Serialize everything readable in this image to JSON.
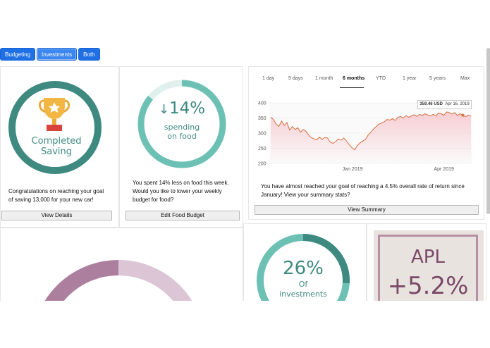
{
  "tabs": [
    "Budgeting",
    "Investments",
    "Both"
  ],
  "savings_card": {
    "line1": "Completed",
    "line2": "Saving",
    "message": [
      "Congratulations on reaching your goal",
      "of saving 13,000 for your new car!"
    ],
    "button": "View Details",
    "ring_color": "#3e8a80",
    "icon": "trophy-icon"
  },
  "food_card": {
    "arrow": "↓",
    "percent": "14%",
    "label1": "spending",
    "label2": "on food",
    "message": [
      "You spent 14% less on food this week.",
      "Would you like to lower your weekly",
      "budget for food?"
    ],
    "button": "Edit Food Budget",
    "progress_fraction": 0.86,
    "ring_color": "#6cc0b4"
  },
  "stock_card": {
    "ranges": [
      "1 day",
      "5 days",
      "1 month",
      "6 months",
      "YTD",
      "1 year",
      "5 years",
      "Max"
    ],
    "active_range": "6 months",
    "tooltip": {
      "value": "359.46 USD",
      "date": "Apr 16, 2019"
    },
    "message": [
      "You have almost reached your goal of reaching a 4.5% overall rate of return since",
      "January! View your summary stats?"
    ],
    "button": "View Summary"
  },
  "chart_data": {
    "type": "line",
    "y_ticks": [
      "400",
      "350",
      "300",
      "250",
      "200"
    ],
    "ylim": [
      200,
      400
    ],
    "x_ticks": [
      "Jan 2019",
      "Apr 2019"
    ],
    "line_color": "#d8703e",
    "fill_color": "#f7c9cf",
    "values": [
      353,
      345,
      330,
      322,
      340,
      326,
      335,
      310,
      322,
      312,
      318,
      303,
      312,
      306,
      294,
      285,
      281,
      278,
      287,
      279,
      286,
      284,
      270,
      266,
      272,
      281,
      277,
      284,
      274,
      262,
      252,
      245,
      259,
      268,
      274,
      279,
      294,
      303,
      314,
      322,
      330,
      334,
      338,
      345,
      343,
      348,
      342,
      352,
      355,
      350,
      358,
      352,
      357,
      361,
      355,
      362,
      358,
      364,
      360,
      357,
      362,
      357,
      366,
      364,
      359,
      370,
      368,
      363,
      368,
      358,
      364,
      359,
      354,
      360,
      356
    ]
  },
  "investments_card": {
    "percent": "26%",
    "label1": "Of",
    "label2": "investments",
    "progress_fraction": 0.26
  },
  "apl_card": {
    "ticker": "APL",
    "change": "+5.2%",
    "color": "#7b4969"
  },
  "pie_card": {
    "colors": [
      "#ad7f9f",
      "#dcc6d6"
    ]
  }
}
